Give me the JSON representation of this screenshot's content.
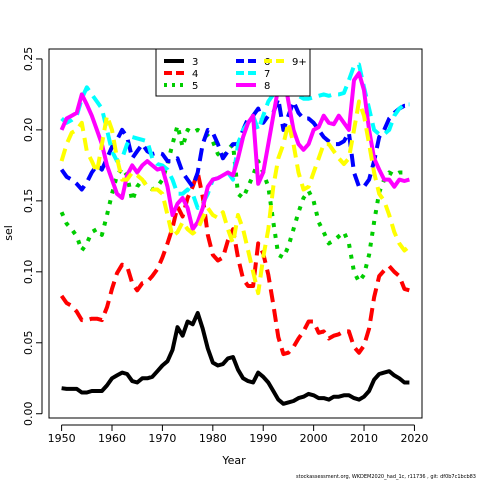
{
  "chart_data": {
    "type": "line",
    "title": "",
    "xlabel": "Year",
    "ylabel": "sel",
    "xlim": [
      1947.5,
      2021.5
    ],
    "ylim": [
      -0.003,
      0.257
    ],
    "x_ticks": [
      1950,
      1960,
      1970,
      1980,
      1990,
      2000,
      2010,
      2020
    ],
    "y_ticks": [
      0.0,
      0.05,
      0.1,
      0.15,
      0.2,
      0.25
    ],
    "y_tick_labels": [
      "0.00",
      "0.05",
      "0.10",
      "0.15",
      "0.20",
      "0.25"
    ],
    "legend_position": "top-center",
    "footnote": "stockassessment.org, WKDEM2020_had_1c, r11736 , git: df0b7c1bcb83",
    "x": [
      1950,
      1951,
      1952,
      1953,
      1954,
      1955,
      1956,
      1957,
      1958,
      1959,
      1960,
      1961,
      1962,
      1963,
      1964,
      1965,
      1966,
      1967,
      1968,
      1969,
      1970,
      1971,
      1972,
      1973,
      1974,
      1975,
      1976,
      1977,
      1978,
      1979,
      1980,
      1981,
      1982,
      1983,
      1984,
      1985,
      1986,
      1987,
      1988,
      1989,
      1990,
      1991,
      1992,
      1993,
      1994,
      1995,
      1996,
      1997,
      1998,
      1999,
      2000,
      2001,
      2002,
      2003,
      2004,
      2005,
      2006,
      2007,
      2008,
      2009,
      2010,
      2011,
      2012,
      2013,
      2014,
      2015,
      2016,
      2017,
      2018,
      2019
    ],
    "series": [
      {
        "name": "3",
        "color": "#000000",
        "dash": "solid",
        "values": [
          0.018,
          0.0175,
          0.0175,
          0.0175,
          0.015,
          0.015,
          0.016,
          0.016,
          0.016,
          0.02,
          0.025,
          0.027,
          0.029,
          0.028,
          0.023,
          0.022,
          0.025,
          0.025,
          0.026,
          0.03,
          0.034,
          0.037,
          0.045,
          0.061,
          0.055,
          0.065,
          0.063,
          0.071,
          0.06,
          0.046,
          0.036,
          0.034,
          0.035,
          0.039,
          0.04,
          0.031,
          0.025,
          0.023,
          0.022,
          0.029,
          0.026,
          0.022,
          0.016,
          0.01,
          0.007,
          0.008,
          0.009,
          0.011,
          0.012,
          0.014,
          0.013,
          0.011,
          0.011,
          0.01,
          0.012,
          0.012,
          0.013,
          0.013,
          0.011,
          0.01,
          0.012,
          0.016,
          0.024,
          0.028,
          0.029,
          0.03,
          0.027,
          0.025,
          0.022,
          0.022
        ]
      },
      {
        "name": "4",
        "color": "#ff0000",
        "dash": "long",
        "values": [
          0.083,
          0.078,
          0.076,
          0.072,
          0.066,
          0.066,
          0.067,
          0.067,
          0.066,
          0.075,
          0.088,
          0.099,
          0.105,
          0.104,
          0.092,
          0.087,
          0.092,
          0.093,
          0.097,
          0.102,
          0.11,
          0.12,
          0.131,
          0.146,
          0.139,
          0.152,
          0.16,
          0.17,
          0.153,
          0.126,
          0.112,
          0.108,
          0.11,
          0.122,
          0.13,
          0.11,
          0.095,
          0.09,
          0.09,
          0.12,
          0.113,
          0.098,
          0.077,
          0.054,
          0.042,
          0.043,
          0.047,
          0.053,
          0.058,
          0.065,
          0.065,
          0.057,
          0.058,
          0.053,
          0.055,
          0.056,
          0.058,
          0.058,
          0.047,
          0.043,
          0.048,
          0.06,
          0.082,
          0.097,
          0.101,
          0.104,
          0.1,
          0.097,
          0.088,
          0.087
        ]
      },
      {
        "name": "5",
        "color": "#00cd00",
        "dash": "dotted",
        "values": [
          0.142,
          0.134,
          0.13,
          0.125,
          0.115,
          0.12,
          0.128,
          0.13,
          0.126,
          0.14,
          0.155,
          0.168,
          0.173,
          0.168,
          0.15,
          0.16,
          0.165,
          0.16,
          0.158,
          0.16,
          0.165,
          0.176,
          0.19,
          0.203,
          0.188,
          0.2,
          0.198,
          0.2,
          0.198,
          0.196,
          0.192,
          0.183,
          0.18,
          0.186,
          0.19,
          0.155,
          0.152,
          0.16,
          0.168,
          0.178,
          0.17,
          0.16,
          0.135,
          0.112,
          0.11,
          0.118,
          0.13,
          0.142,
          0.152,
          0.157,
          0.15,
          0.135,
          0.128,
          0.12,
          0.122,
          0.125,
          0.128,
          0.12,
          0.1,
          0.093,
          0.098,
          0.112,
          0.135,
          0.156,
          0.165,
          0.17,
          0.168,
          0.17,
          0.17,
          0.17
        ]
      },
      {
        "name": "6",
        "color": "#0000ff",
        "dash": "long",
        "values": [
          0.172,
          0.167,
          0.165,
          0.162,
          0.158,
          0.163,
          0.17,
          0.175,
          0.172,
          0.18,
          0.188,
          0.193,
          0.2,
          0.195,
          0.18,
          0.185,
          0.19,
          0.185,
          0.183,
          0.184,
          0.183,
          0.178,
          0.178,
          0.18,
          0.17,
          0.165,
          0.16,
          0.17,
          0.19,
          0.2,
          0.198,
          0.19,
          0.18,
          0.185,
          0.19,
          0.19,
          0.2,
          0.208,
          0.21,
          0.215,
          0.205,
          0.21,
          0.212,
          0.222,
          0.2,
          0.21,
          0.22,
          0.212,
          0.208,
          0.208,
          0.205,
          0.2,
          0.195,
          0.192,
          0.19,
          0.19,
          0.192,
          0.198,
          0.17,
          0.16,
          0.16,
          0.165,
          0.178,
          0.195,
          0.2,
          0.208,
          0.212,
          0.215,
          0.217,
          0.217
        ]
      },
      {
        "name": "7",
        "color": "#00ffff",
        "dash": "long",
        "values": [
          0.208,
          0.205,
          0.207,
          0.21,
          0.222,
          0.23,
          0.225,
          0.22,
          0.215,
          0.2,
          0.185,
          0.178,
          0.18,
          0.19,
          0.195,
          0.194,
          0.193,
          0.192,
          0.18,
          0.176,
          0.175,
          0.172,
          0.165,
          0.155,
          0.155,
          0.158,
          0.155,
          0.145,
          0.148,
          0.155,
          0.165,
          0.166,
          0.168,
          0.17,
          0.165,
          0.19,
          0.2,
          0.205,
          0.21,
          0.2,
          0.21,
          0.22,
          0.225,
          0.225,
          0.226,
          0.225,
          0.225,
          0.224,
          0.222,
          0.222,
          0.223,
          0.224,
          0.225,
          0.224,
          0.225,
          0.225,
          0.226,
          0.235,
          0.245,
          0.246,
          0.23,
          0.215,
          0.2,
          0.197,
          0.197,
          0.2,
          0.21,
          0.215,
          0.218,
          0.218
        ]
      },
      {
        "name": "8",
        "color": "#ff00ff",
        "dash": "solid",
        "values": [
          0.2,
          0.208,
          0.21,
          0.212,
          0.225,
          0.218,
          0.21,
          0.2,
          0.19,
          0.175,
          0.165,
          0.155,
          0.152,
          0.168,
          0.175,
          0.17,
          0.175,
          0.178,
          0.175,
          0.172,
          0.173,
          0.16,
          0.14,
          0.148,
          0.152,
          0.145,
          0.13,
          0.135,
          0.145,
          0.16,
          0.165,
          0.166,
          0.168,
          0.17,
          0.168,
          0.18,
          0.195,
          0.205,
          0.21,
          0.162,
          0.17,
          0.19,
          0.21,
          0.23,
          0.24,
          0.22,
          0.2,
          0.19,
          0.186,
          0.19,
          0.2,
          0.202,
          0.21,
          0.205,
          0.204,
          0.21,
          0.205,
          0.2,
          0.235,
          0.24,
          0.228,
          0.2,
          0.18,
          0.172,
          0.165,
          0.165,
          0.16,
          0.165,
          0.164,
          0.165
        ]
      },
      {
        "name": "9+",
        "color": "#ffff00",
        "dash": "long",
        "values": [
          0.178,
          0.19,
          0.198,
          0.2,
          0.205,
          0.185,
          0.178,
          0.17,
          0.19,
          0.21,
          0.2,
          0.18,
          0.165,
          0.165,
          0.17,
          0.168,
          0.165,
          0.16,
          0.158,
          0.158,
          0.155,
          0.14,
          0.125,
          0.128,
          0.135,
          0.13,
          0.127,
          0.13,
          0.138,
          0.145,
          0.14,
          0.138,
          0.142,
          0.13,
          0.12,
          0.14,
          0.13,
          0.115,
          0.1,
          0.085,
          0.11,
          0.13,
          0.16,
          0.18,
          0.19,
          0.205,
          0.19,
          0.17,
          0.158,
          0.16,
          0.17,
          0.18,
          0.19,
          0.19,
          0.185,
          0.18,
          0.176,
          0.18,
          0.2,
          0.22,
          0.21,
          0.19,
          0.17,
          0.155,
          0.15,
          0.14,
          0.128,
          0.12,
          0.115,
          0.118
        ]
      }
    ]
  }
}
